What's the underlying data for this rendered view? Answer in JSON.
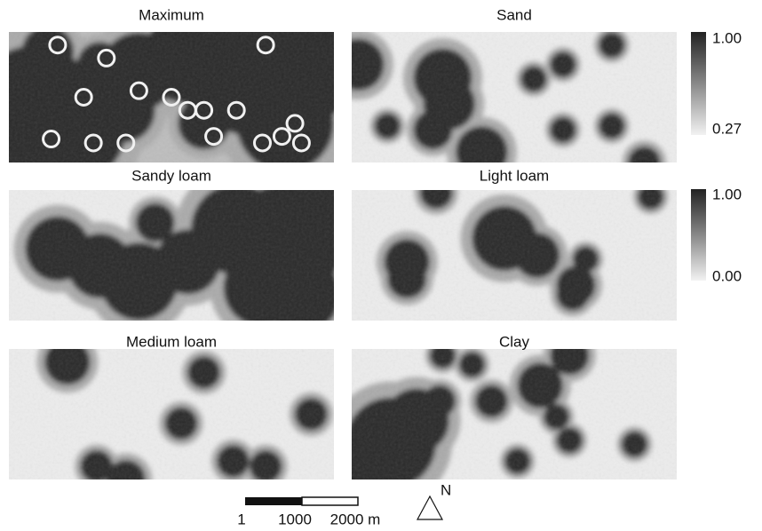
{
  "panels": [
    {
      "title": "Maximum"
    },
    {
      "title": "Sand"
    },
    {
      "title": "Sandy loam"
    },
    {
      "title": "Light loam"
    },
    {
      "title": "Medium loam"
    },
    {
      "title": "Clay"
    }
  ],
  "colorbars": [
    {
      "max": "1.00",
      "min": "0.27"
    },
    {
      "max": "1.00",
      "min": "0.00"
    }
  ],
  "scale_bar": {
    "labels": [
      "1",
      "1000",
      "2000 m"
    ]
  },
  "north_label": "N"
}
